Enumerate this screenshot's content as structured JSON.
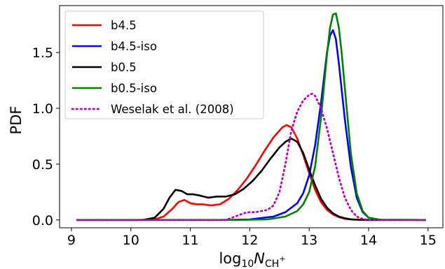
{
  "chart_data": {
    "type": "line",
    "xlabel": {
      "base": "log",
      "sub": "10",
      "main": "N",
      "main_sub": "CH",
      "main_sup": "+"
    },
    "ylabel": "PDF",
    "xlim": [
      8.8,
      15.25
    ],
    "ylim": [
      -0.07,
      1.92
    ],
    "x_ticks": [
      9,
      10,
      11,
      12,
      13,
      14,
      15
    ],
    "y_ticks": [
      0.0,
      0.5,
      1.0,
      1.5
    ],
    "y_tick_labels": [
      "0.0",
      "0.5",
      "1.0",
      "1.5"
    ],
    "grid": false,
    "legend_position": "top-left",
    "series": [
      {
        "name": "b4.5",
        "color": "#ff0000",
        "style": "solid",
        "x": [
          9.1,
          10.1,
          10.4,
          10.55,
          10.7,
          10.8,
          10.9,
          11.0,
          11.1,
          11.2,
          11.35,
          11.5,
          11.65,
          11.8,
          11.95,
          12.1,
          12.25,
          12.4,
          12.55,
          12.62,
          12.7,
          12.8,
          12.9,
          13.0,
          13.1,
          13.2,
          13.3,
          13.4,
          13.5,
          13.6,
          13.75,
          13.9,
          14.95
        ],
        "y": [
          0,
          0,
          0.005,
          0.03,
          0.1,
          0.16,
          0.18,
          0.15,
          0.14,
          0.14,
          0.13,
          0.14,
          0.19,
          0.27,
          0.37,
          0.49,
          0.62,
          0.74,
          0.83,
          0.85,
          0.83,
          0.73,
          0.58,
          0.42,
          0.27,
          0.16,
          0.09,
          0.05,
          0.025,
          0.01,
          0.003,
          0,
          0
        ]
      },
      {
        "name": "b4.5-iso",
        "color": "#0000ff",
        "style": "solid",
        "x": [
          9.1,
          11.5,
          12.0,
          12.4,
          12.6,
          12.8,
          12.9,
          13.0,
          13.1,
          13.2,
          13.3,
          13.35,
          13.4,
          13.45,
          13.5,
          13.6,
          13.7,
          13.8,
          13.9,
          14.0,
          14.2,
          14.95
        ],
        "y": [
          0,
          0,
          0.005,
          0.03,
          0.07,
          0.15,
          0.24,
          0.4,
          0.67,
          1.05,
          1.5,
          1.65,
          1.7,
          1.62,
          1.4,
          0.9,
          0.48,
          0.2,
          0.07,
          0.02,
          0.002,
          0
        ]
      },
      {
        "name": "b0.5",
        "color": "#000000",
        "style": "solid",
        "x": [
          9.1,
          10.2,
          10.4,
          10.55,
          10.65,
          10.75,
          10.85,
          10.95,
          11.05,
          11.15,
          11.3,
          11.45,
          11.6,
          11.75,
          11.9,
          12.05,
          12.2,
          12.35,
          12.5,
          12.6,
          12.7,
          12.8,
          12.9,
          13.0,
          13.1,
          13.2,
          13.3,
          13.4,
          13.5,
          13.6,
          13.7,
          13.85,
          14.0,
          14.95
        ],
        "y": [
          0,
          0,
          0.02,
          0.1,
          0.2,
          0.27,
          0.26,
          0.23,
          0.23,
          0.22,
          0.2,
          0.21,
          0.21,
          0.23,
          0.28,
          0.35,
          0.44,
          0.55,
          0.65,
          0.7,
          0.73,
          0.7,
          0.6,
          0.45,
          0.31,
          0.19,
          0.11,
          0.06,
          0.03,
          0.015,
          0.006,
          0.002,
          0,
          0
        ]
      },
      {
        "name": "b0.5-iso",
        "color": "#008000",
        "style": "solid",
        "x": [
          9.1,
          11.8,
          12.3,
          12.6,
          12.8,
          12.9,
          13.0,
          13.1,
          13.2,
          13.3,
          13.35,
          13.4,
          13.45,
          13.5,
          13.55,
          13.6,
          13.7,
          13.8,
          13.9,
          14.0,
          14.2,
          14.95
        ],
        "y": [
          0,
          0,
          0.005,
          0.03,
          0.08,
          0.14,
          0.25,
          0.48,
          0.92,
          1.48,
          1.72,
          1.84,
          1.85,
          1.72,
          1.48,
          1.18,
          0.6,
          0.24,
          0.08,
          0.02,
          0.002,
          0
        ]
      },
      {
        "name": "Weselak et al. (2008)",
        "color": "#bf00bf",
        "style": "dotted",
        "x": [
          9.1,
          11.6,
          11.75,
          11.9,
          12.0,
          12.1,
          12.2,
          12.3,
          12.4,
          12.5,
          12.6,
          12.7,
          12.8,
          12.9,
          13.0,
          13.05,
          13.1,
          13.2,
          13.3,
          13.4,
          13.5,
          13.6,
          13.7,
          13.8,
          13.9,
          14.0,
          14.95
        ],
        "y": [
          0,
          0,
          0.03,
          0.06,
          0.07,
          0.07,
          0.08,
          0.09,
          0.13,
          0.25,
          0.5,
          0.8,
          0.97,
          1.07,
          1.12,
          1.13,
          1.11,
          1.0,
          0.82,
          0.6,
          0.38,
          0.2,
          0.09,
          0.03,
          0.01,
          0,
          0
        ]
      }
    ]
  }
}
